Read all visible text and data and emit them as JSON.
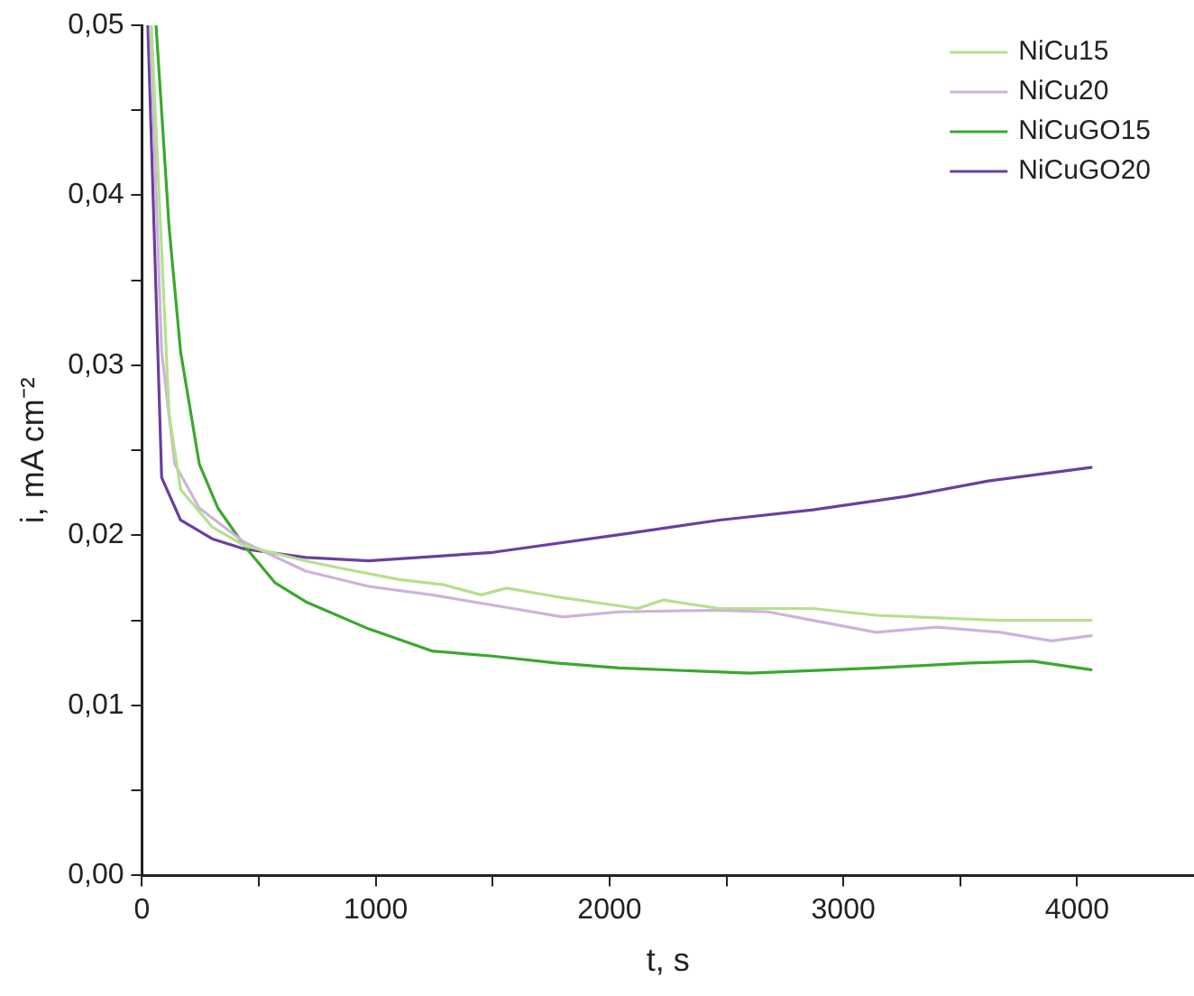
{
  "chart_data": {
    "type": "line",
    "xlabel": "t, s",
    "ylabel": "i, mA cm⁻²",
    "xlim": [
      0,
      4500
    ],
    "ylim": [
      0,
      0.05
    ],
    "xticks": [
      0,
      {
        "value": 500,
        "label": null
      },
      1000,
      {
        "value": 1500,
        "label": null
      },
      2000,
      {
        "value": 2500,
        "label": null
      },
      3000,
      {
        "value": 3500,
        "label": null
      },
      4000
    ],
    "yticks": [
      {
        "value": 0,
        "label": "0,00"
      },
      {
        "value": 0.005,
        "label": null
      },
      {
        "value": 0.01,
        "label": "0,01"
      },
      {
        "value": 0.015,
        "label": null
      },
      {
        "value": 0.02,
        "label": "0,02"
      },
      {
        "value": 0.025,
        "label": null
      },
      {
        "value": 0.03,
        "label": "0,03"
      },
      {
        "value": 0.035,
        "label": null
      },
      {
        "value": 0.04,
        "label": "0,04"
      },
      {
        "value": 0.045,
        "label": null
      },
      {
        "value": 0.05,
        "label": "0,05"
      }
    ],
    "grid": false,
    "legend": "top right",
    "marker": "none",
    "line_style": "solid",
    "series": [
      {
        "name": "NiCu15",
        "color": "#b5e08e",
        "x": [
          40,
          116,
          165,
          300,
          437,
          700,
          840,
          1100,
          1290,
          1450,
          1560,
          1770,
          2120,
          2230,
          2470,
          2870,
          3140,
          3670,
          4060
        ],
        "values": [
          0.05,
          0.0271,
          0.0227,
          0.0205,
          0.0194,
          0.0185,
          0.0181,
          0.0174,
          0.0171,
          0.0165,
          0.0169,
          0.0164,
          0.0157,
          0.0162,
          0.0157,
          0.0157,
          0.0153,
          0.015,
          0.015
        ]
      },
      {
        "name": "NiCu20",
        "color": "#cdb3dc",
        "x": [
          35,
          84,
          140,
          245,
          437,
          700,
          970,
          1240,
          1500,
          1800,
          2040,
          2470,
          2680,
          2870,
          3140,
          3400,
          3670,
          3890,
          4060
        ],
        "values": [
          0.05,
          0.0308,
          0.0242,
          0.0216,
          0.0196,
          0.0179,
          0.017,
          0.0165,
          0.0159,
          0.0152,
          0.0155,
          0.0156,
          0.0155,
          0.015,
          0.0143,
          0.0146,
          0.0143,
          0.0138,
          0.0141
        ]
      },
      {
        "name": "NiCuGO15",
        "color": "#3aa82e",
        "x": [
          60,
          116,
          165,
          245,
          325,
          437,
          570,
          700,
          970,
          1240,
          1500,
          1770,
          2040,
          2600,
          3140,
          3540,
          3810,
          4060
        ],
        "values": [
          0.05,
          0.0381,
          0.0308,
          0.0242,
          0.0216,
          0.0194,
          0.0172,
          0.0161,
          0.0145,
          0.0132,
          0.0129,
          0.0125,
          0.0122,
          0.0119,
          0.0122,
          0.0125,
          0.0126,
          0.0121
        ]
      },
      {
        "name": "NiCuGO20",
        "color": "#6a3fa0",
        "x": [
          25,
          84,
          165,
          300,
          437,
          700,
          970,
          1500,
          2070,
          2470,
          2870,
          3270,
          3620,
          4060
        ],
        "values": [
          0.05,
          0.0234,
          0.0209,
          0.0198,
          0.0192,
          0.0187,
          0.0185,
          0.019,
          0.0201,
          0.0209,
          0.0215,
          0.0223,
          0.0232,
          0.024
        ]
      }
    ]
  }
}
